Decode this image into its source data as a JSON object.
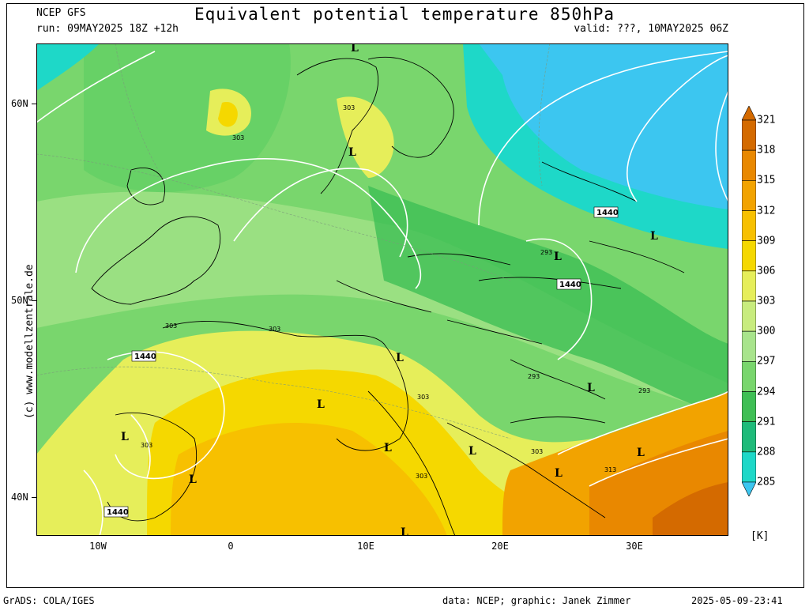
{
  "header": {
    "model": "NCEP GFS",
    "run": "run: 09MAY2025 18Z +12h",
    "title": "Equivalent potential temperature 850hPa",
    "valid": "valid: ???, 10MAY2025 06Z"
  },
  "axes": {
    "y_ticks": [
      "60N",
      "50N",
      "40N"
    ],
    "x_ticks": [
      "10W",
      "0",
      "10E",
      "20E",
      "30E"
    ]
  },
  "colorbar": {
    "unit": "[K]",
    "levels": [
      "321",
      "318",
      "315",
      "312",
      "309",
      "306",
      "303",
      "300",
      "297",
      "294",
      "291",
      "288",
      "285"
    ],
    "colors": [
      "#d46a00",
      "#e98800",
      "#f2a300",
      "#f7c000",
      "#f5d800",
      "#e6ee5a",
      "#c8ec7e",
      "#a8e48c",
      "#79d66d",
      "#3fbf55",
      "#1fbb7a",
      "#1ed8c8",
      "#3cc6f0"
    ]
  },
  "map_labels": {
    "highs_lows": [
      "L",
      "L",
      "L",
      "L",
      "L",
      "L",
      "L",
      "L",
      "L",
      "L",
      "L",
      "L",
      "L",
      "L"
    ],
    "geopotential": [
      "1440",
      "1440",
      "1440",
      "1440"
    ],
    "theta_values": [
      "303",
      "303",
      "303",
      "303",
      "303",
      "303",
      "303",
      "303",
      "293",
      "293",
      "293",
      "313"
    ]
  },
  "watermark": "(c)  www.modellzentrale.de",
  "footer": {
    "software": "GrADS: COLA/IGES",
    "credits": "data: NCEP; graphic: Janek Zimmer",
    "timestamp": "2025-05-09-23:41"
  }
}
